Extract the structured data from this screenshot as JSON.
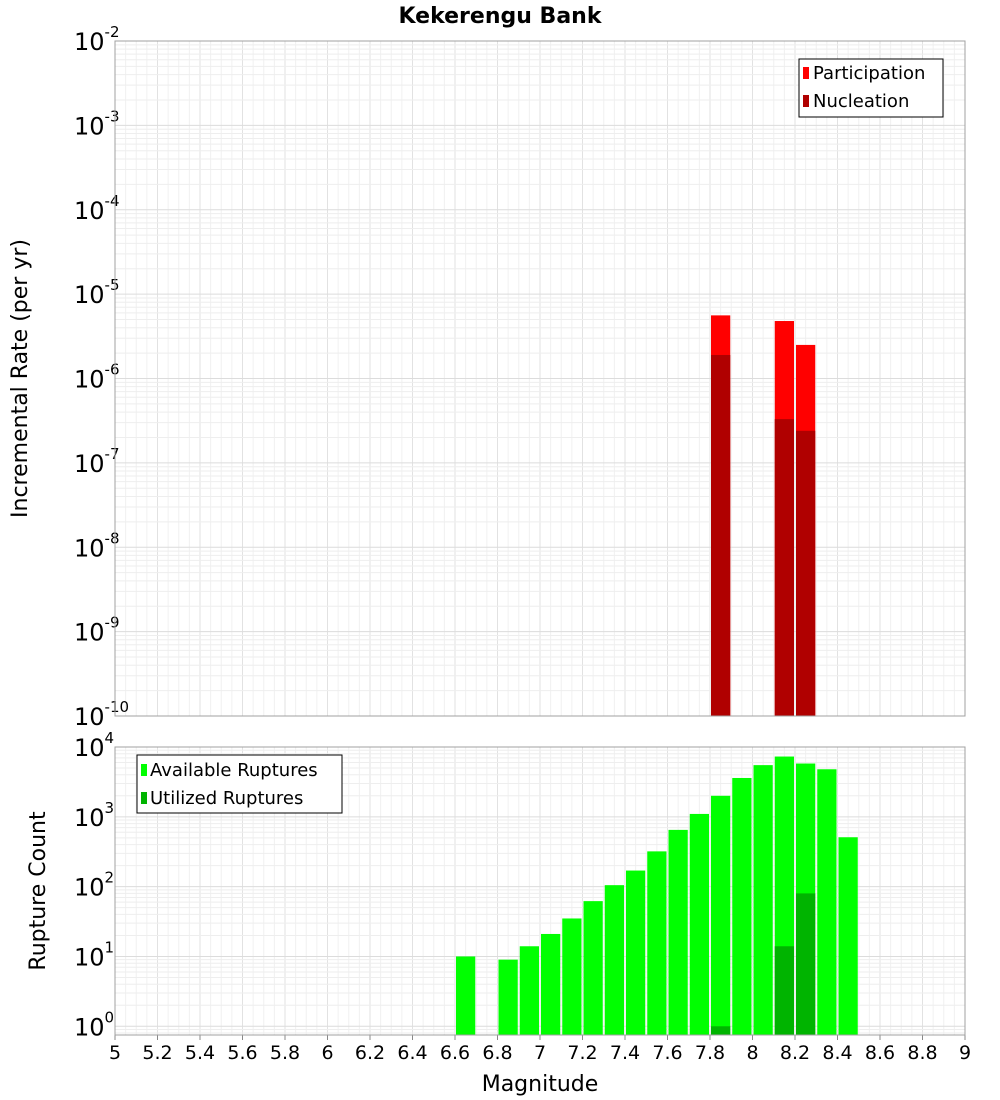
{
  "chart_data": [
    {
      "type": "bar",
      "title": "Kekerengu Bank",
      "xlabel": "",
      "ylabel": "Incremental Rate (per yr)",
      "yscale": "log",
      "ylim": [
        1e-10,
        0.01
      ],
      "xlim": [
        5,
        9
      ],
      "grid": true,
      "legend_position": "top-right",
      "bar_width": 0.1,
      "y_tick_labels": [
        {
          "base": "10",
          "exp": "-10"
        },
        {
          "base": "10",
          "exp": "-9"
        },
        {
          "base": "10",
          "exp": "-8"
        },
        {
          "base": "10",
          "exp": "-7"
        },
        {
          "base": "10",
          "exp": "-6"
        },
        {
          "base": "10",
          "exp": "-5"
        },
        {
          "base": "10",
          "exp": "-4"
        },
        {
          "base": "10",
          "exp": "-3"
        },
        {
          "base": "10",
          "exp": "-2"
        }
      ],
      "series": [
        {
          "name": "Participation",
          "color": "#ff0000",
          "x": [
            7.85,
            8.15,
            8.25
          ],
          "values": [
            5.6e-06,
            4.8e-06,
            2.5e-06
          ]
        },
        {
          "name": "Nucleation",
          "color": "#b00000",
          "x": [
            7.85,
            8.15,
            8.25
          ],
          "values": [
            1.9e-06,
            3.3e-07,
            2.4e-07
          ]
        }
      ]
    },
    {
      "type": "bar",
      "title": "",
      "xlabel": "Magnitude",
      "ylabel": "Rupture Count",
      "yscale": "log",
      "ylim": [
        0.75,
        10000
      ],
      "xlim": [
        5,
        9
      ],
      "grid": true,
      "legend_position": "top-left",
      "bar_width": 0.1,
      "x_tick_labels": [
        "5",
        "5.2",
        "5.4",
        "5.6",
        "5.8",
        "6",
        "6.2",
        "6.4",
        "6.6",
        "6.8",
        "7",
        "7.2",
        "7.4",
        "7.6",
        "7.8",
        "8",
        "8.2",
        "8.4",
        "8.6",
        "8.8",
        "9"
      ],
      "y_tick_labels": [
        {
          "base": "10",
          "exp": "0"
        },
        {
          "base": "10",
          "exp": "1"
        },
        {
          "base": "10",
          "exp": "2"
        },
        {
          "base": "10",
          "exp": "3"
        },
        {
          "base": "10",
          "exp": "4"
        }
      ],
      "series": [
        {
          "name": "Available Ruptures",
          "color": "#00ff00",
          "x": [
            6.65,
            6.85,
            6.95,
            7.05,
            7.15,
            7.25,
            7.35,
            7.45,
            7.55,
            7.65,
            7.75,
            7.85,
            7.95,
            8.05,
            8.15,
            8.25,
            8.35,
            8.45
          ],
          "values": [
            10,
            9,
            14,
            21,
            35,
            62,
            105,
            170,
            320,
            650,
            1100,
            2000,
            3600,
            5500,
            7300,
            5800,
            4800,
            510
          ]
        },
        {
          "name": "Utilized Ruptures",
          "color": "#00b400",
          "x": [
            7.85,
            8.15,
            8.25
          ],
          "values": [
            1,
            14,
            80
          ]
        }
      ]
    }
  ]
}
